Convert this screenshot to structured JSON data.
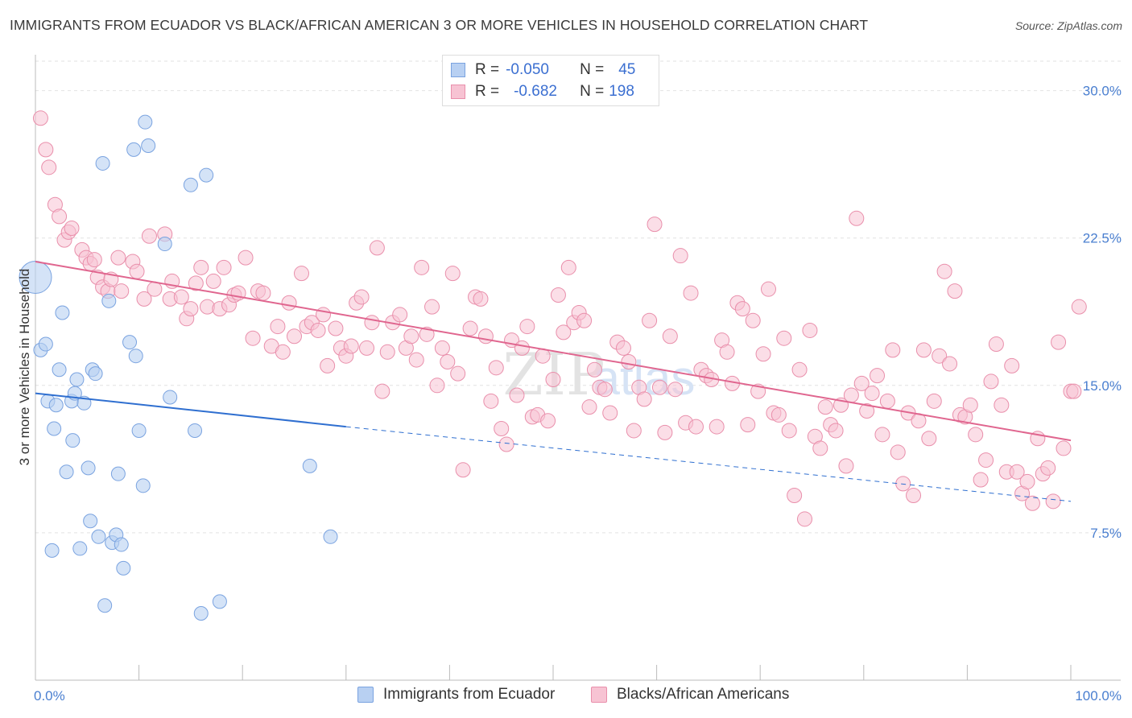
{
  "header": {
    "title": "IMMIGRANTS FROM ECUADOR VS BLACK/AFRICAN AMERICAN 3 OR MORE VEHICLES IN HOUSEHOLD CORRELATION CHART",
    "source": "Source: ZipAtlas.com"
  },
  "legend": {
    "series1": {
      "r_label": "R =",
      "r_value": "-0.050",
      "n_label": "N =",
      "n_value": "45"
    },
    "series2": {
      "r_label": "R =",
      "r_value": "-0.682",
      "n_label": "N =",
      "n_value": "198"
    }
  },
  "bottom_legend": {
    "series1": "Immigrants from Ecuador",
    "series2": "Blacks/African Americans"
  },
  "colors": {
    "blue_fill": "#b8d0f2",
    "blue_stroke": "#7aa3e0",
    "blue_line": "#2f6fd0",
    "pink_fill": "#f7c3d3",
    "pink_stroke": "#e98fab",
    "pink_line": "#e0668f",
    "tick_text": "#4a7fd0"
  },
  "chart_data": {
    "type": "scatter",
    "title": "IMMIGRANTS FROM ECUADOR VS BLACK/AFRICAN AMERICAN 3 OR MORE VEHICLES IN HOUSEHOLD CORRELATION CHART",
    "xlabel": "",
    "ylabel": "3 or more Vehicles in Household",
    "xlim": [
      0,
      100
    ],
    "ylim": [
      0,
      31.5
    ],
    "x_ticks": [
      "0.0%",
      "100.0%"
    ],
    "y_ticks": [
      {
        "value": 7.5,
        "label": "7.5%"
      },
      {
        "value": 15.0,
        "label": "15.0%"
      },
      {
        "value": 22.5,
        "label": "22.5%"
      },
      {
        "value": 30.0,
        "label": "30.0%"
      }
    ],
    "grid": true,
    "legend_position": "top-center",
    "series": [
      {
        "name": "Immigrants from Ecuador",
        "trend": {
          "x0": 0,
          "y0": 14.6,
          "x1": 30,
          "y1": 12.9,
          "dashed_to_x": 100,
          "dashed_to_y": 9.1
        },
        "points": [
          [
            0,
            20.5
          ],
          [
            0.5,
            16.8
          ],
          [
            1,
            17.1
          ],
          [
            1.2,
            14.2
          ],
          [
            1.6,
            6.6
          ],
          [
            2,
            14.0
          ],
          [
            1.8,
            12.8
          ],
          [
            2.3,
            15.8
          ],
          [
            2.6,
            18.7
          ],
          [
            3,
            10.6
          ],
          [
            3.5,
            14.2
          ],
          [
            3.6,
            12.2
          ],
          [
            3.8,
            14.6
          ],
          [
            4,
            15.3
          ],
          [
            4.3,
            6.7
          ],
          [
            4.7,
            14.1
          ],
          [
            5.1,
            10.8
          ],
          [
            5.3,
            8.1
          ],
          [
            5.5,
            15.8
          ],
          [
            5.8,
            15.6
          ],
          [
            6.1,
            7.3
          ],
          [
            6.5,
            26.3
          ],
          [
            6.7,
            3.8
          ],
          [
            7.1,
            19.3
          ],
          [
            7.4,
            7.0
          ],
          [
            7.8,
            7.4
          ],
          [
            8,
            10.5
          ],
          [
            8.3,
            6.9
          ],
          [
            8.5,
            5.7
          ],
          [
            9.1,
            17.2
          ],
          [
            9.5,
            27.0
          ],
          [
            9.7,
            16.5
          ],
          [
            10,
            12.7
          ],
          [
            10.4,
            9.9
          ],
          [
            10.6,
            28.4
          ],
          [
            10.9,
            27.2
          ],
          [
            12.5,
            22.2
          ],
          [
            13,
            14.4
          ],
          [
            15,
            25.2
          ],
          [
            15.4,
            12.7
          ],
          [
            16,
            3.4
          ],
          [
            16.5,
            25.7
          ],
          [
            17.8,
            4.0
          ],
          [
            26.5,
            10.9
          ],
          [
            28.5,
            7.3
          ]
        ]
      },
      {
        "name": "Blacks/African Americans",
        "trend": {
          "x0": 0,
          "y0": 21.3,
          "x1": 100,
          "y1": 12.2
        },
        "points": [
          [
            0.5,
            28.6
          ],
          [
            1,
            27.0
          ],
          [
            1.3,
            26.1
          ],
          [
            1.9,
            24.2
          ],
          [
            2.3,
            23.6
          ],
          [
            2.8,
            22.4
          ],
          [
            3.2,
            22.8
          ],
          [
            3.5,
            23.0
          ],
          [
            4.5,
            21.9
          ],
          [
            4.9,
            21.5
          ],
          [
            5.3,
            21.2
          ],
          [
            5.7,
            21.4
          ],
          [
            6,
            20.5
          ],
          [
            6.5,
            20.0
          ],
          [
            7,
            19.8
          ],
          [
            7.3,
            20.4
          ],
          [
            8,
            21.5
          ],
          [
            8.3,
            19.8
          ],
          [
            9.4,
            21.3
          ],
          [
            9.8,
            20.8
          ],
          [
            10.5,
            19.4
          ],
          [
            11,
            22.6
          ],
          [
            11.5,
            19.9
          ],
          [
            12.5,
            22.7
          ],
          [
            13,
            19.4
          ],
          [
            13.2,
            20.3
          ],
          [
            14.1,
            19.5
          ],
          [
            14.6,
            18.4
          ],
          [
            15,
            18.9
          ],
          [
            15.5,
            20.2
          ],
          [
            16,
            21.0
          ],
          [
            16.6,
            19.0
          ],
          [
            17.2,
            20.3
          ],
          [
            17.8,
            18.9
          ],
          [
            18.2,
            21.0
          ],
          [
            18.7,
            19.1
          ],
          [
            19.2,
            19.6
          ],
          [
            19.6,
            19.7
          ],
          [
            20.3,
            21.5
          ],
          [
            21,
            17.4
          ],
          [
            21.5,
            19.8
          ],
          [
            22,
            19.7
          ],
          [
            22.8,
            17.0
          ],
          [
            23.4,
            18.0
          ],
          [
            23.9,
            16.7
          ],
          [
            24.5,
            19.2
          ],
          [
            25,
            17.5
          ],
          [
            25.7,
            20.7
          ],
          [
            26.2,
            18.0
          ],
          [
            26.7,
            18.2
          ],
          [
            27.3,
            17.8
          ],
          [
            27.8,
            18.6
          ],
          [
            28.2,
            16.0
          ],
          [
            29,
            17.9
          ],
          [
            29.5,
            16.9
          ],
          [
            30,
            16.5
          ],
          [
            30.5,
            17.0
          ],
          [
            31,
            19.2
          ],
          [
            31.5,
            19.5
          ],
          [
            32,
            16.9
          ],
          [
            32.5,
            18.2
          ],
          [
            33,
            22.0
          ],
          [
            33.5,
            14.7
          ],
          [
            34,
            16.7
          ],
          [
            34.5,
            18.2
          ],
          [
            35.2,
            18.6
          ],
          [
            35.8,
            16.9
          ],
          [
            36.3,
            17.5
          ],
          [
            36.8,
            16.3
          ],
          [
            37.3,
            21.0
          ],
          [
            37.8,
            17.6
          ],
          [
            38.3,
            19.0
          ],
          [
            38.8,
            15.0
          ],
          [
            39.3,
            16.9
          ],
          [
            39.8,
            16.2
          ],
          [
            40.3,
            20.7
          ],
          [
            40.8,
            15.6
          ],
          [
            41.3,
            10.7
          ],
          [
            42,
            17.9
          ],
          [
            42.5,
            19.5
          ],
          [
            43,
            19.4
          ],
          [
            43.5,
            17.5
          ],
          [
            44,
            14.2
          ],
          [
            44.5,
            15.9
          ],
          [
            45,
            12.8
          ],
          [
            45.5,
            12.0
          ],
          [
            46,
            17.3
          ],
          [
            46.5,
            14.5
          ],
          [
            47,
            16.9
          ],
          [
            47.5,
            18.0
          ],
          [
            48,
            13.4
          ],
          [
            48.5,
            13.5
          ],
          [
            49,
            16.5
          ],
          [
            49.5,
            13.2
          ],
          [
            50,
            15.3
          ],
          [
            50.5,
            19.6
          ],
          [
            51,
            17.7
          ],
          [
            51.5,
            21.0
          ],
          [
            52,
            18.2
          ],
          [
            52.5,
            18.7
          ],
          [
            53,
            18.3
          ],
          [
            53.5,
            13.9
          ],
          [
            54,
            15.8
          ],
          [
            54.5,
            14.9
          ],
          [
            55,
            14.8
          ],
          [
            55.5,
            13.6
          ],
          [
            56.2,
            17.2
          ],
          [
            56.8,
            16.9
          ],
          [
            57.3,
            16.2
          ],
          [
            57.8,
            12.7
          ],
          [
            58.3,
            14.9
          ],
          [
            58.8,
            14.3
          ],
          [
            59.3,
            18.3
          ],
          [
            59.8,
            23.2
          ],
          [
            60.3,
            14.9
          ],
          [
            60.8,
            12.6
          ],
          [
            61.3,
            17.5
          ],
          [
            61.8,
            14.8
          ],
          [
            62.3,
            21.6
          ],
          [
            62.8,
            13.1
          ],
          [
            63.3,
            19.7
          ],
          [
            63.8,
            12.9
          ],
          [
            64.3,
            15.8
          ],
          [
            64.8,
            15.5
          ],
          [
            65.3,
            15.3
          ],
          [
            65.8,
            12.9
          ],
          [
            66.3,
            17.3
          ],
          [
            66.8,
            16.7
          ],
          [
            67.3,
            15.1
          ],
          [
            67.8,
            19.2
          ],
          [
            68.3,
            18.9
          ],
          [
            68.8,
            13.0
          ],
          [
            69.3,
            18.3
          ],
          [
            69.8,
            14.7
          ],
          [
            70.3,
            16.6
          ],
          [
            70.8,
            19.9
          ],
          [
            71.3,
            13.6
          ],
          [
            71.8,
            13.5
          ],
          [
            72.3,
            17.4
          ],
          [
            72.8,
            12.7
          ],
          [
            73.3,
            9.4
          ],
          [
            73.8,
            15.8
          ],
          [
            74.3,
            8.2
          ],
          [
            74.8,
            17.8
          ],
          [
            75.3,
            12.4
          ],
          [
            75.8,
            11.8
          ],
          [
            76.3,
            13.9
          ],
          [
            76.8,
            13.0
          ],
          [
            77.3,
            12.7
          ],
          [
            77.8,
            14.0
          ],
          [
            78.3,
            10.9
          ],
          [
            78.8,
            14.5
          ],
          [
            79.3,
            23.5
          ],
          [
            79.8,
            15.1
          ],
          [
            80.3,
            13.7
          ],
          [
            80.8,
            14.6
          ],
          [
            81.3,
            15.5
          ],
          [
            81.8,
            12.5
          ],
          [
            82.3,
            14.2
          ],
          [
            82.8,
            16.8
          ],
          [
            83.3,
            11.6
          ],
          [
            83.8,
            10.0
          ],
          [
            84.3,
            13.6
          ],
          [
            84.8,
            9.4
          ],
          [
            85.3,
            13.2
          ],
          [
            85.8,
            16.8
          ],
          [
            86.3,
            12.3
          ],
          [
            86.8,
            14.2
          ],
          [
            87.3,
            16.5
          ],
          [
            87.8,
            20.8
          ],
          [
            88.3,
            16.1
          ],
          [
            88.8,
            19.8
          ],
          [
            89.3,
            13.5
          ],
          [
            89.8,
            13.4
          ],
          [
            90.3,
            14.0
          ],
          [
            90.8,
            12.5
          ],
          [
            91.3,
            10.2
          ],
          [
            91.8,
            11.2
          ],
          [
            92.3,
            15.2
          ],
          [
            92.8,
            17.1
          ],
          [
            93.3,
            14.0
          ],
          [
            93.8,
            10.6
          ],
          [
            94.3,
            16.0
          ],
          [
            94.8,
            10.6
          ],
          [
            95.3,
            9.5
          ],
          [
            95.8,
            10.1
          ],
          [
            96.3,
            9.0
          ],
          [
            96.8,
            12.3
          ],
          [
            97.3,
            10.5
          ],
          [
            97.8,
            10.8
          ],
          [
            98.3,
            9.1
          ],
          [
            98.8,
            17.2
          ],
          [
            99.3,
            11.8
          ],
          [
            100,
            14.7
          ],
          [
            100.3,
            14.7
          ],
          [
            100.8,
            19.0
          ]
        ]
      }
    ]
  }
}
